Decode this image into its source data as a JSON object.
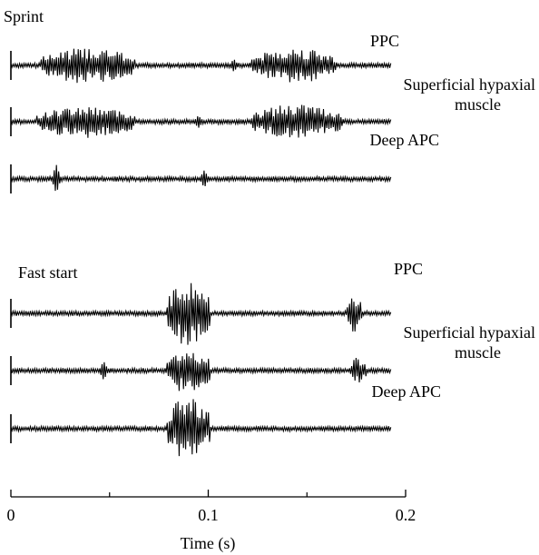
{
  "chart_data": {
    "type": "line",
    "xlabel": "Time (s)",
    "xlim": [
      0,
      0.2
    ],
    "x_ticks": [
      {
        "value": 0,
        "label": "0"
      },
      {
        "value": 0.1,
        "label": "0.1"
      },
      {
        "value": 0.2,
        "label": "0.2"
      }
    ],
    "x_minor_ticks": [
      0.05,
      0.15
    ],
    "grid": false,
    "legend": "none",
    "panels": [
      {
        "title": "Sprint",
        "traces": [
          {
            "label_lines": [
              "PPC"
            ],
            "bursts": [
              {
                "start": 0.015,
                "end": 0.063,
                "amplitude": 1.0
              },
              {
                "start": 0.122,
                "end": 0.165,
                "amplitude": 1.0
              }
            ],
            "spikes": [
              {
                "t": 0.113,
                "amplitude": 0.35
              },
              {
                "t": 0.194,
                "amplitude": 0.3
              }
            ]
          },
          {
            "label_lines": [
              "Superficial hypaxial",
              "muscle"
            ],
            "bursts": [
              {
                "start": 0.013,
                "end": 0.063,
                "amplitude": 0.9
              },
              {
                "start": 0.122,
                "end": 0.168,
                "amplitude": 1.0
              }
            ],
            "spikes": [
              {
                "t": 0.095,
                "amplitude": 0.35
              }
            ]
          },
          {
            "label_lines": [
              "Deep APC"
            ],
            "bursts": [],
            "spikes": [
              {
                "t": 0.023,
                "amplitude": 1.0
              },
              {
                "t": 0.098,
                "amplitude": 0.6
              }
            ]
          }
        ]
      },
      {
        "title": "Fast start",
        "traces": [
          {
            "label_lines": [
              "PPC"
            ],
            "bursts": [
              {
                "start": 0.079,
                "end": 0.101,
                "amplitude": 1.0
              },
              {
                "start": 0.17,
                "end": 0.178,
                "amplitude": 0.6
              }
            ],
            "spikes": []
          },
          {
            "label_lines": [
              "Superficial hypaxial",
              "muscle"
            ],
            "bursts": [
              {
                "start": 0.079,
                "end": 0.101,
                "amplitude": 0.85
              },
              {
                "start": 0.172,
                "end": 0.18,
                "amplitude": 0.5
              }
            ],
            "spikes": [
              {
                "t": 0.047,
                "amplitude": 0.35
              }
            ]
          },
          {
            "label_lines": [
              "Deep APC"
            ],
            "bursts": [
              {
                "start": 0.079,
                "end": 0.101,
                "amplitude": 1.0
              }
            ],
            "spikes": []
          }
        ]
      }
    ]
  }
}
